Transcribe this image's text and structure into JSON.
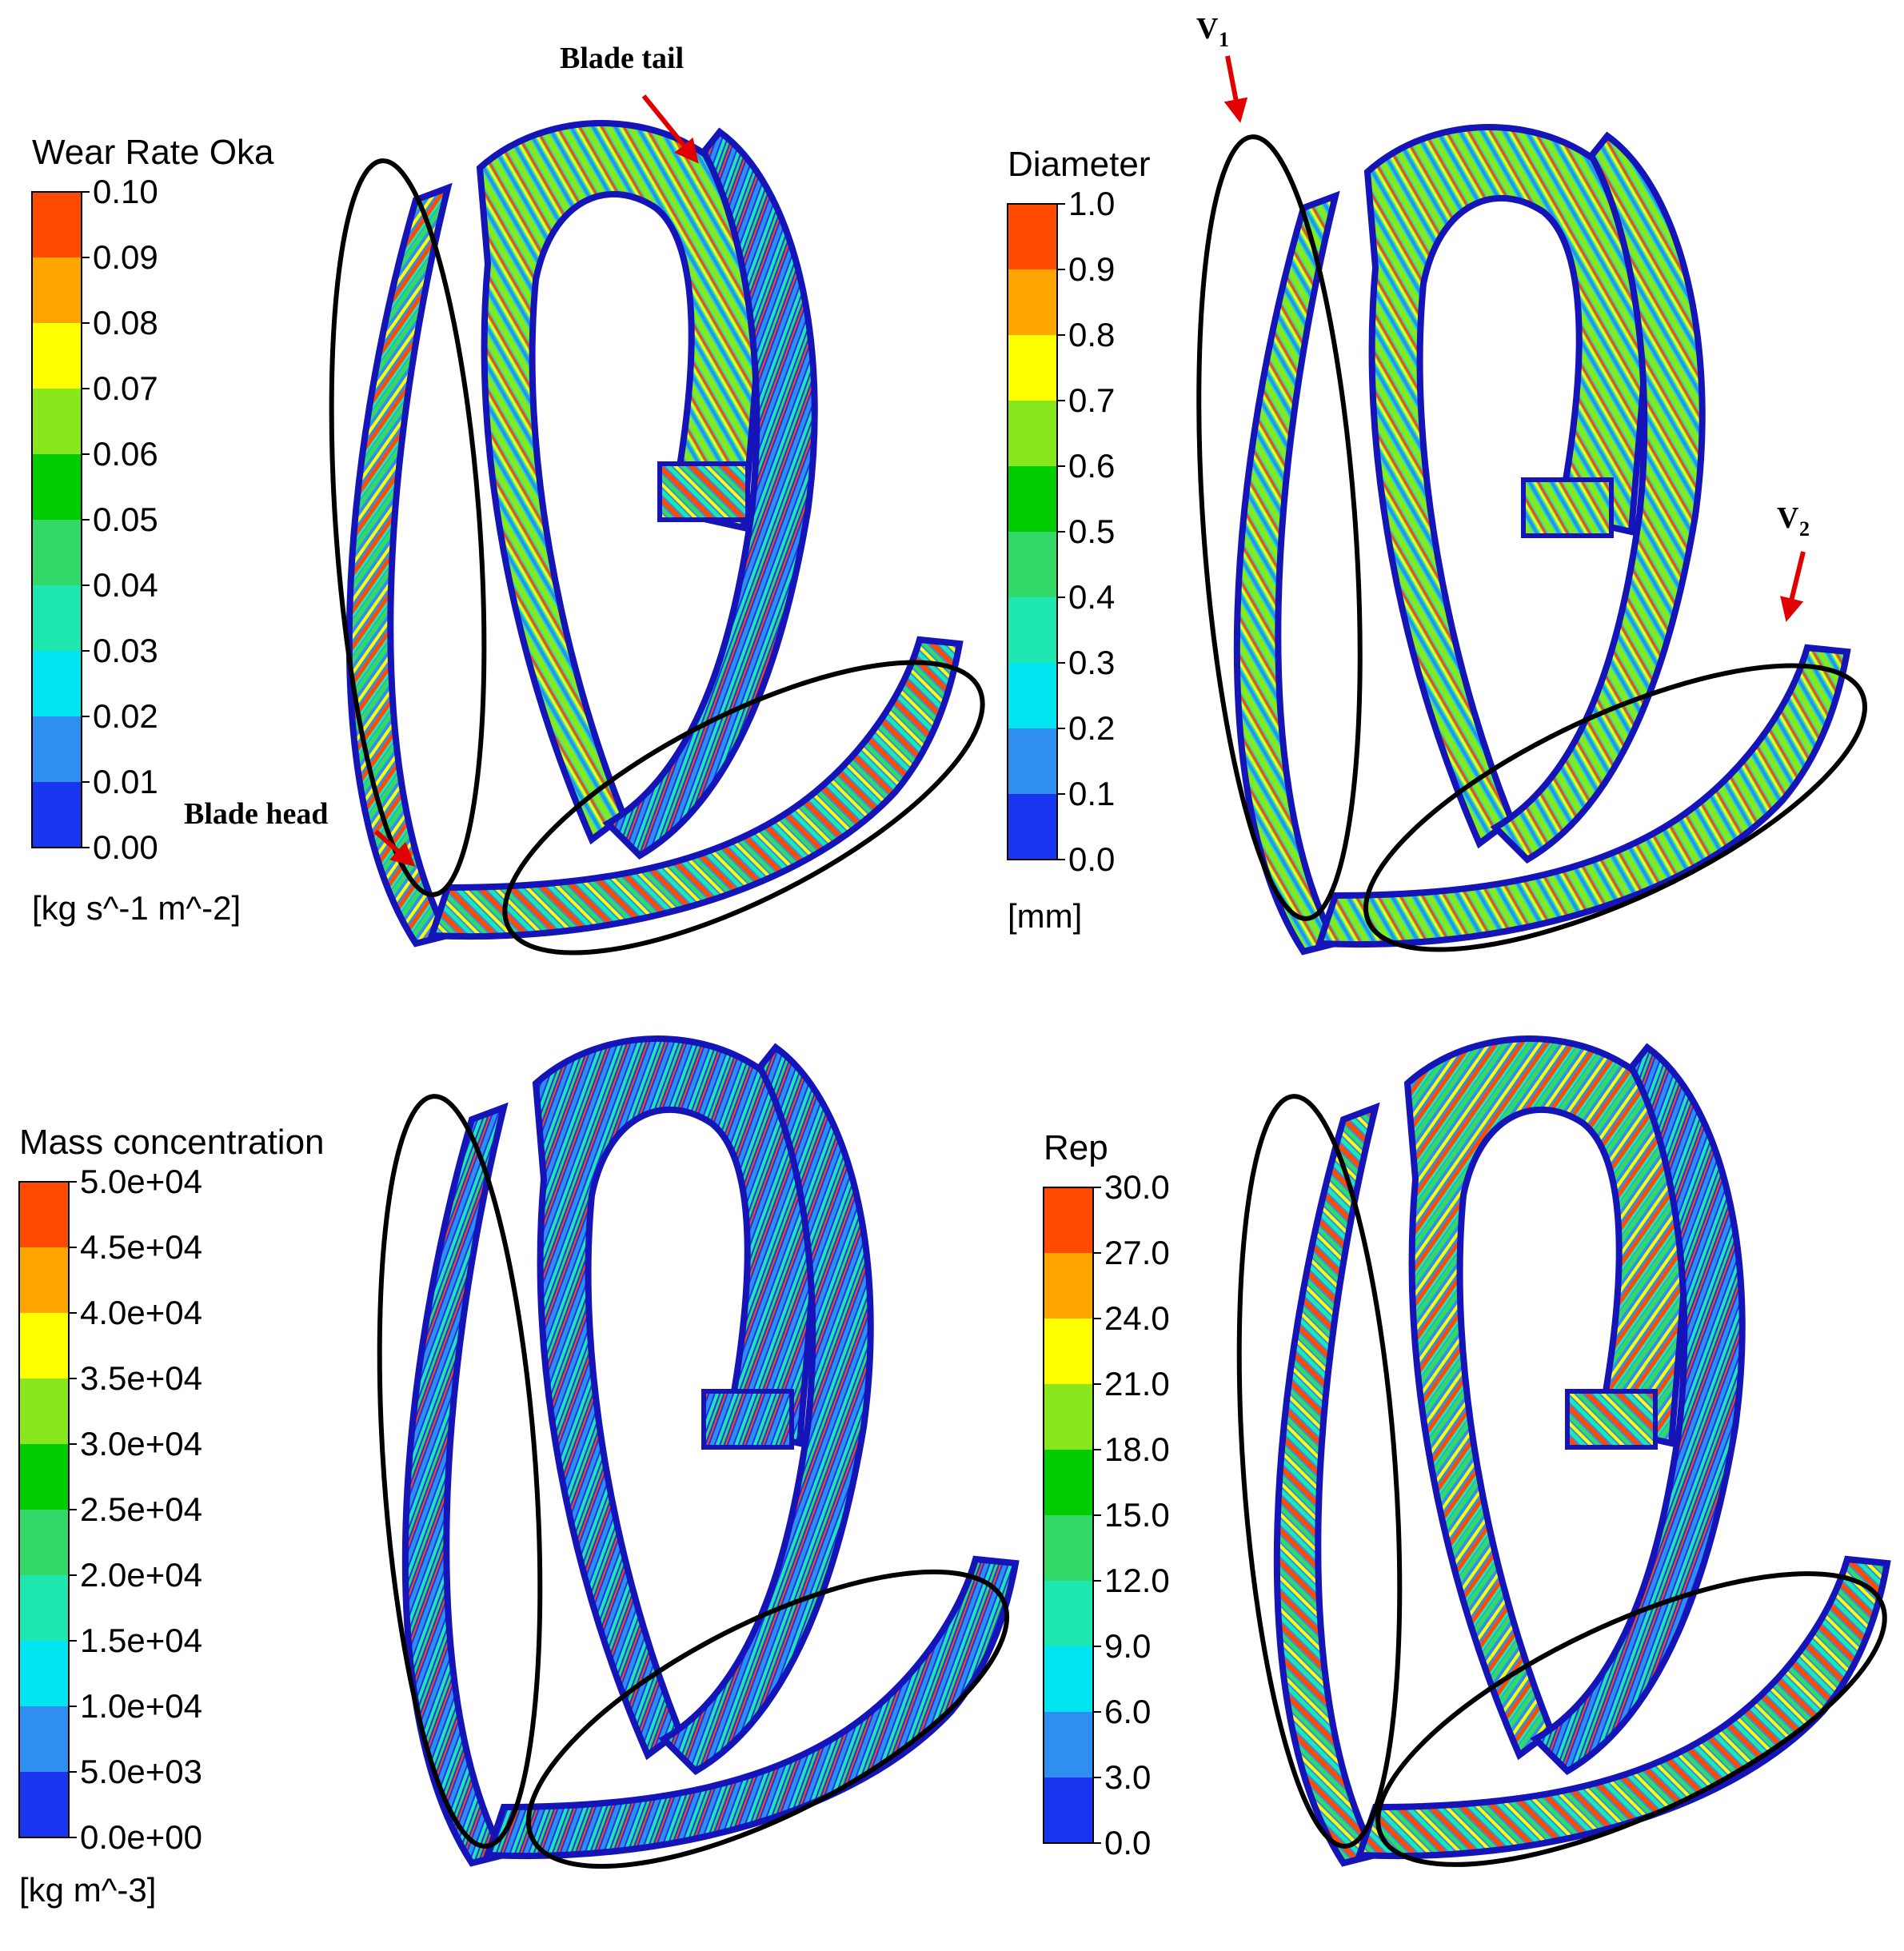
{
  "colors": {
    "levels": [
      "#1a35f0",
      "#2f8ff0",
      "#00e5f0",
      "#1ee8b0",
      "#33d966",
      "#00cc00",
      "#88e81c",
      "#ffff00",
      "#ffa500",
      "#ff4a00"
    ],
    "blade_edge": "#1414b8",
    "blade_base": "#2244f5",
    "hot": "#ff2200",
    "annotation_red": "#e00000",
    "ellipse": "#000000"
  },
  "panels": [
    {
      "id": "wear-rate",
      "title": "Wear Rate Oka",
      "ticks": [
        "0.10",
        "0.09",
        "0.08",
        "0.07",
        "0.06",
        "0.05",
        "0.04",
        "0.03",
        "0.02",
        "0.01",
        "0.00"
      ],
      "unit": "[kg s^-1 m^-2]",
      "annotations": [
        "Blade tail",
        "Blade head"
      ]
    },
    {
      "id": "diameter",
      "title": "Diameter",
      "ticks": [
        "1.0",
        "0.9",
        "0.8",
        "0.7",
        "0.6",
        "0.5",
        "0.4",
        "0.3",
        "0.2",
        "0.1",
        "0.0"
      ],
      "unit": "[mm]",
      "annotations": [
        "V",
        "1",
        "V",
        "2"
      ]
    },
    {
      "id": "mass-concentration",
      "title": "Mass concentration",
      "ticks": [
        "5.0e+04",
        "4.5e+04",
        "4.0e+04",
        "3.5e+04",
        "3.0e+04",
        "2.5e+04",
        "2.0e+04",
        "1.5e+04",
        "1.0e+04",
        "5.0e+03",
        "0.0e+00"
      ],
      "unit": "[kg m^-3]",
      "annotations": []
    },
    {
      "id": "rep",
      "title": "Rep",
      "ticks": [
        "30.0",
        "27.0",
        "24.0",
        "21.0",
        "18.0",
        "15.0",
        "12.0",
        "9.0",
        "6.0",
        "3.0",
        "0.0"
      ],
      "unit": "",
      "annotations": []
    }
  ]
}
